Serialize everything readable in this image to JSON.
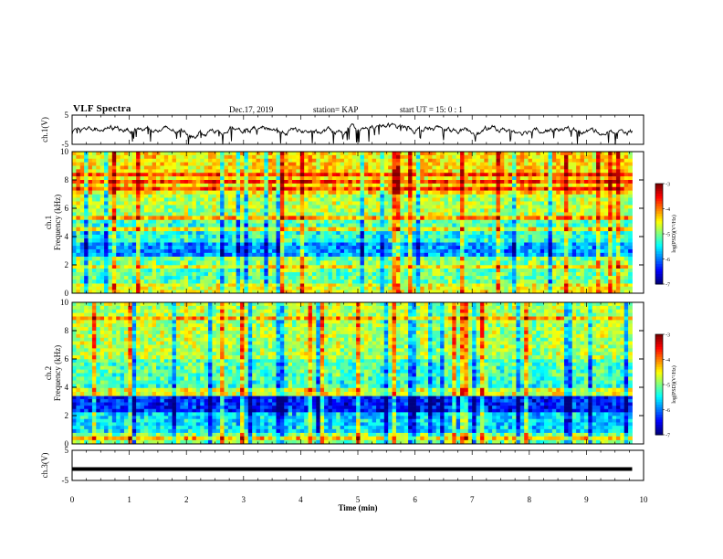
{
  "header": {
    "title": "VLF Spectra",
    "date": "Dec.17, 2019",
    "station": "station= KAP",
    "start": "start  UT  =   15: 0  : 1"
  },
  "colors": {
    "low": "#000080",
    "high": "#800000",
    "background": "#ffffff"
  },
  "chart_data": [
    {
      "type": "line",
      "panel": "ch1-waveform",
      "ylabel": "ch.1(V)",
      "ylim": [
        -5,
        5
      ],
      "yticks": [
        "5",
        "-5"
      ],
      "x_range": [
        0,
        9.8
      ],
      "approx_level": 0,
      "note_values": "waveform fluctuating around 0 V with spikes to about -5 V"
    },
    {
      "type": "heatmap",
      "panel": "ch1-spectrogram",
      "ylabel": "ch.1 Frequency (kHz)",
      "ylim": [
        0,
        10
      ],
      "yticks": [
        "0",
        "2",
        "4",
        "6",
        "8",
        "10"
      ],
      "x_range": [
        0,
        9.8
      ],
      "colorbar": {
        "label": "log(PSD)(V²/Hz)",
        "range": [
          -7,
          -3
        ],
        "ticks": [
          "-3",
          "-4",
          "-5",
          "-6",
          "-7"
        ]
      },
      "bands_khz": [
        {
          "from": 0,
          "to": 0.7,
          "level": -4.6
        },
        {
          "from": 0.7,
          "to": 2.0,
          "level": -5.1
        },
        {
          "from": 2.0,
          "to": 2.6,
          "level": -5.0
        },
        {
          "from": 2.6,
          "to": 3.6,
          "level": -5.9
        },
        {
          "from": 3.6,
          "to": 4.4,
          "level": -5.4
        },
        {
          "from": 4.4,
          "to": 5.2,
          "level": -5.2
        },
        {
          "from": 5.2,
          "to": 7.0,
          "level": -4.8
        },
        {
          "from": 7.0,
          "to": 10.0,
          "level": -4.4
        }
      ]
    },
    {
      "type": "heatmap",
      "panel": "ch2-spectrogram",
      "ylabel": "ch.2 Frequency (kHz)",
      "ylim": [
        0,
        10
      ],
      "yticks": [
        "0",
        "2",
        "4",
        "6",
        "8",
        "10"
      ],
      "x_range": [
        0,
        9.8
      ],
      "colorbar": {
        "label": "log(PSD)(V²/Hz)",
        "range": [
          -7,
          -3
        ],
        "ticks": [
          "-3",
          "-4",
          "-5",
          "-6",
          "-7"
        ]
      },
      "bands_khz": [
        {
          "from": 0,
          "to": 0.8,
          "level": -5.0
        },
        {
          "from": 0.8,
          "to": 2.0,
          "level": -5.6
        },
        {
          "from": 2.0,
          "to": 3.4,
          "level": -6.4
        },
        {
          "from": 3.4,
          "to": 4.5,
          "level": -5.3
        },
        {
          "from": 4.5,
          "to": 6.0,
          "level": -5.2
        },
        {
          "from": 6.0,
          "to": 10.0,
          "level": -4.8
        }
      ]
    },
    {
      "type": "line",
      "panel": "ch3-waveform",
      "ylabel": "ch.3(V)",
      "ylim": [
        -5,
        5
      ],
      "yticks": [
        "5",
        "-5"
      ],
      "x_range": [
        0,
        9.8
      ],
      "approx_level": -1.2
    }
  ],
  "xaxis": {
    "label": "Time  (min)",
    "range": [
      0,
      10
    ],
    "ticks": [
      "0",
      "1",
      "2",
      "3",
      "4",
      "5",
      "6",
      "7",
      "8",
      "9",
      "10"
    ]
  }
}
